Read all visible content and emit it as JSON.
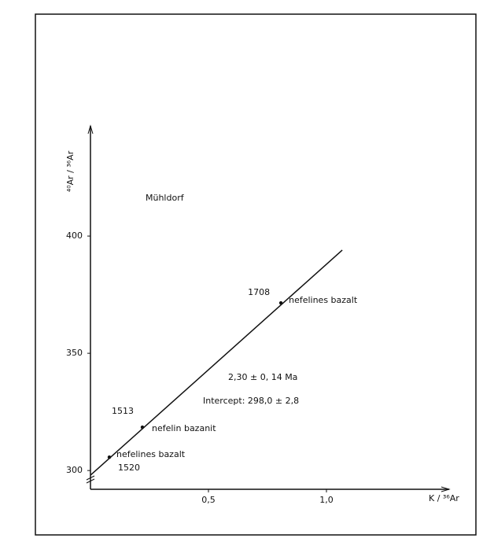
{
  "chart_data": {
    "type": "scatter",
    "title": "Mühldorf",
    "x_label": "K / ³⁶Ar",
    "y_label": "⁴⁰Ar / ³⁶Ar",
    "x": [
      0.08,
      0.22,
      0.807
    ],
    "series": [
      {
        "color": "#111111",
        "values": [
          305.7,
          318.5,
          371.5
        ]
      }
    ],
    "point_labels": [
      {
        "sample": "1520",
        "rock": "nefelines bazalt"
      },
      {
        "sample": "1513",
        "rock": "nefelin bazanit"
      },
      {
        "sample": "1708",
        "rock": "nefelines bazalt"
      }
    ],
    "fit_line": {
      "x": [
        0,
        1.067
      ],
      "y": [
        298,
        394
      ]
    },
    "annotations": [
      "2,30 ± 0, 14 Ma",
      "Intercept: 298,0 ± 2,8"
    ],
    "xlim": [
      0,
      1.52
    ],
    "ylim": [
      292,
      447
    ],
    "xticks": [
      {
        "value": 0.5,
        "label": "0,5"
      },
      {
        "value": 1.0,
        "label": "1,0"
      }
    ],
    "yticks": [
      300,
      350,
      400
    ]
  }
}
